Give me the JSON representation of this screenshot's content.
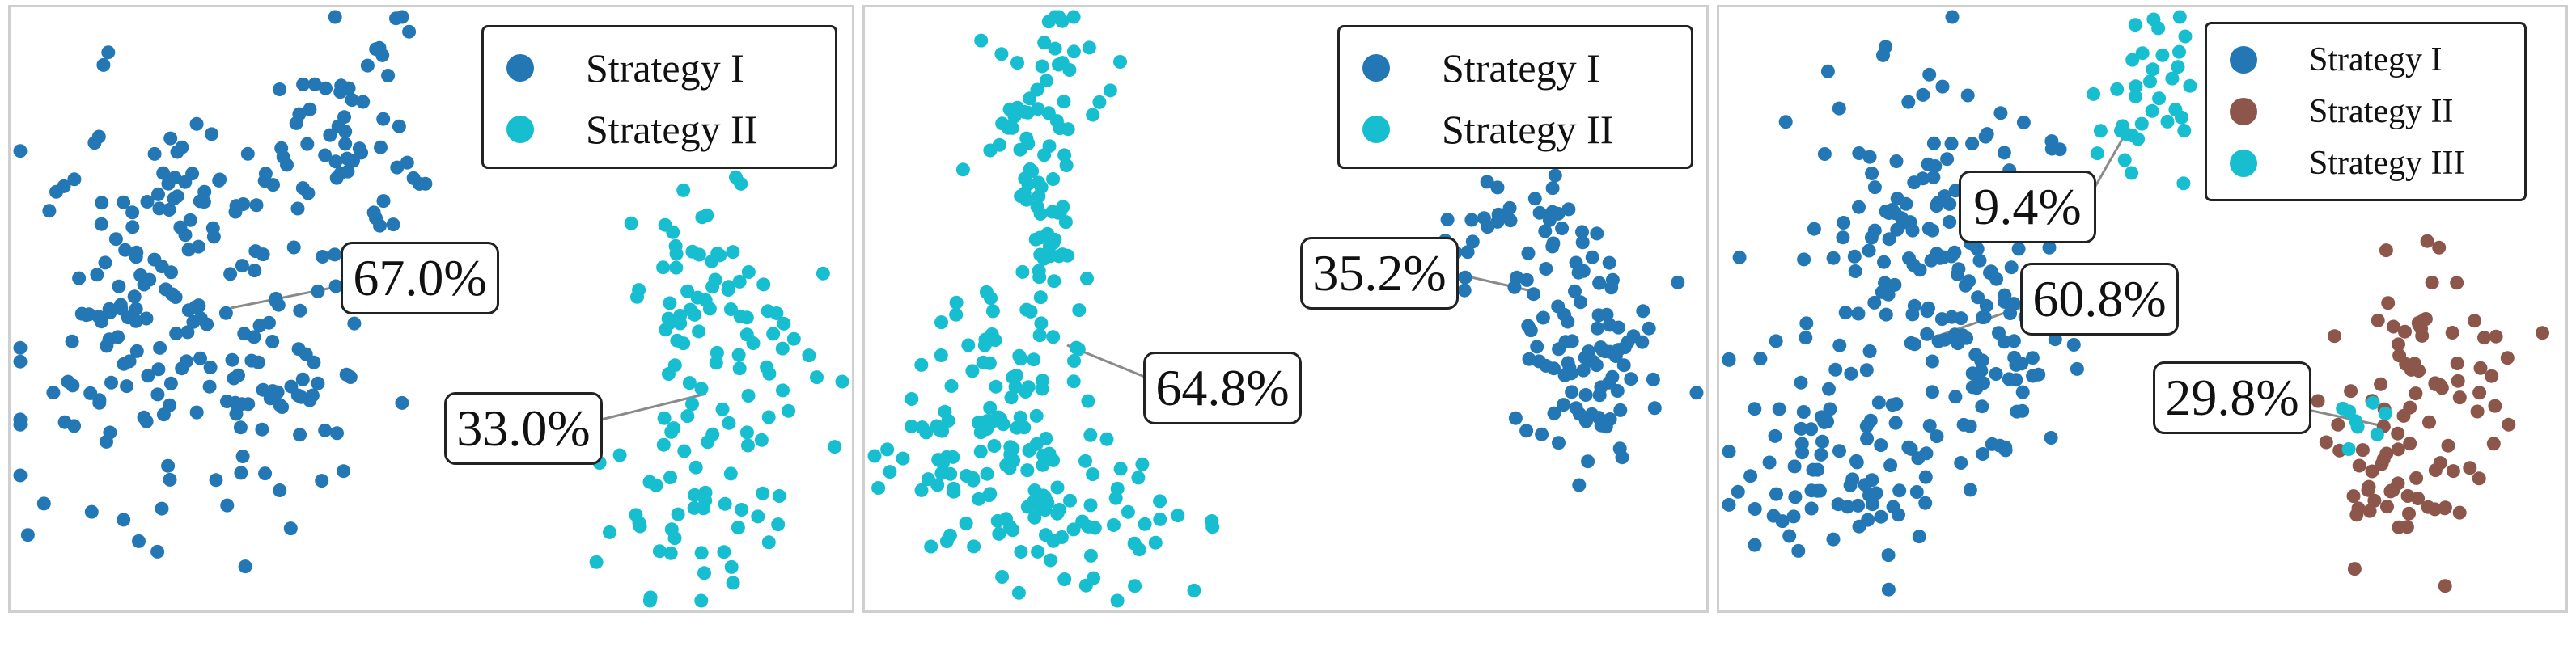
{
  "colors": {
    "strategy_1": "#2377b4",
    "strategy_2_teal": "#17bed0",
    "strategy_2_brown": "#8c564b",
    "strategy_3": "#17bed0",
    "leader": "#8a8a8a"
  },
  "chart_data": [
    {
      "type": "scatter",
      "title": "",
      "xlabel": "",
      "ylabel": "",
      "grid": false,
      "axes_visible": false,
      "legend_position": "top-right",
      "series": [
        {
          "name": "Strategy I",
          "share_label": "67.0%",
          "share": 67.0
        },
        {
          "name": "Strategy II",
          "share_label": "33.0%",
          "share": 33.0
        }
      ]
    },
    {
      "type": "scatter",
      "title": "",
      "xlabel": "",
      "ylabel": "",
      "grid": false,
      "axes_visible": false,
      "legend_position": "top-right",
      "series": [
        {
          "name": "Strategy I",
          "share_label": "35.2%",
          "share": 35.2
        },
        {
          "name": "Strategy II",
          "share_label": "64.8%",
          "share": 64.8
        }
      ]
    },
    {
      "type": "scatter",
      "title": "",
      "xlabel": "",
      "ylabel": "",
      "grid": false,
      "axes_visible": false,
      "legend_position": "top-right",
      "series": [
        {
          "name": "Strategy I",
          "share_label": "60.8%",
          "share": 60.8
        },
        {
          "name": "Strategy II",
          "share_label": "29.8%",
          "share": 29.8
        },
        {
          "name": "Strategy III",
          "share_label": "9.4%",
          "share": 9.4
        }
      ]
    }
  ]
}
